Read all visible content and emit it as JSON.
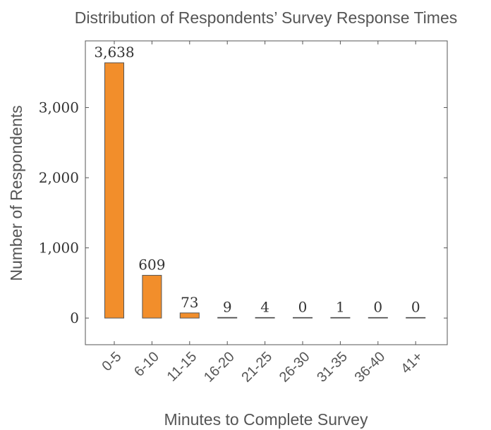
{
  "chart_data": {
    "type": "bar",
    "title": "Distribution of Respondents’ Survey Response Times",
    "xlabel": "Minutes to Complete Survey",
    "ylabel": "Number of Respondents",
    "categories": [
      "0-5",
      "6-10",
      "11-15",
      "16-20",
      "21-25",
      "26-30",
      "31-35",
      "36-40",
      "41+"
    ],
    "values": [
      3638,
      609,
      73,
      9,
      4,
      0,
      1,
      0,
      0
    ],
    "data_labels": [
      "3,638",
      "609",
      "73",
      "9",
      "4",
      "0",
      "1",
      "0",
      "0"
    ],
    "yticks": [
      0,
      1000,
      2000,
      3000
    ],
    "ytick_labels": [
      "0",
      "1,000",
      "2,000",
      "3,000"
    ],
    "ylim": [
      -380,
      3950
    ],
    "grid": false,
    "bar_color": "#f28e2b",
    "bar_edge_color": "#555555"
  }
}
